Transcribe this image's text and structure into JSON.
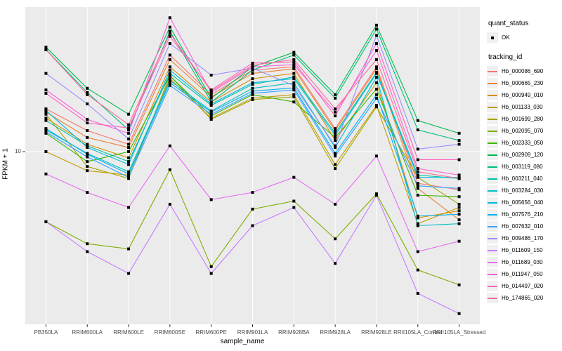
{
  "axes": {
    "x_title": "sample_name",
    "y_title": "FPKM + 1",
    "y_ticks": [
      {
        "label": "10",
        "value": 10
      }
    ]
  },
  "legend": {
    "quant_status_title": "quant_status",
    "quant_status_items": [
      {
        "label": "OK",
        "marker": "black-square-point"
      }
    ],
    "tracking_id_title": "tracking_id"
  },
  "style_colors": {
    "panel_background": "#EBEBEB",
    "gridline": "#FFFFFF",
    "tick_mark": "#333333",
    "tick_text": "#4D4D4D",
    "point": "#000000",
    "legend_key_background": "#F0F0F0"
  },
  "chart_data": {
    "type": "line",
    "title": "",
    "xlabel": "sample_name",
    "ylabel": "FPKM + 1",
    "yscale": "log10",
    "ylim": [
      1.4,
      52
    ],
    "grid": "major",
    "legend_position": "right",
    "point_shape": "filled-square",
    "x": [
      "PB350LA",
      "RRIM600LA",
      "RRIM600LE",
      "RRIM600SE",
      "RRIM600PE",
      "RRIM901LA",
      "RRIM928BA",
      "RRIM928LA",
      "RRIM928LE",
      "RRII105LA_Control",
      "RRII105LA_Stressed"
    ],
    "series": [
      {
        "name": "Hb_000086_690",
        "color": "#F8766D",
        "values": [
          16.5,
          12.8,
          10.9,
          31,
          19.5,
          26,
          27,
          13.1,
          27,
          6.9,
          6.4
        ]
      },
      {
        "name": "Hb_000665_230",
        "color": "#EA8331",
        "values": [
          15.9,
          11.8,
          10.5,
          29.4,
          19,
          25,
          26.4,
          12.8,
          26.4,
          6.5,
          4.5
        ]
      },
      {
        "name": "Hb_000949_010",
        "color": "#D89000",
        "values": [
          14.8,
          10.9,
          9.3,
          27,
          17.9,
          23.5,
          25,
          11.4,
          22.4,
          4.6,
          5.0
        ]
      },
      {
        "name": "Hb_001133_030",
        "color": "#C09B00",
        "values": [
          10,
          8.0,
          7.6,
          23.5,
          14.8,
          18.7,
          19.5,
          8.6,
          17.2,
          4.3,
          5.2
        ]
      },
      {
        "name": "Hb_001699_280",
        "color": "#A3A500",
        "values": [
          15.5,
          8.4,
          7.3,
          24.3,
          14.6,
          18.4,
          19,
          8.2,
          16.9,
          7.4,
          5.4
        ]
      },
      {
        "name": "Hb_002095_070",
        "color": "#7CAE00",
        "values": [
          4.4,
          3.4,
          3.2,
          8.1,
          2.6,
          5.1,
          5.6,
          3.6,
          6.1,
          2.5,
          2.1
        ]
      },
      {
        "name": "Hb_002333_050",
        "color": "#39B600",
        "values": [
          12.4,
          8.9,
          10,
          24.3,
          15.2,
          19.5,
          17.9,
          11.8,
          20.8,
          6.0,
          5.9
        ]
      },
      {
        "name": "Hb_002909_120",
        "color": "#00BB4E",
        "values": [
          34,
          21,
          15.5,
          43,
          18.7,
          27,
          32,
          19.5,
          44,
          14.4,
          12.4
        ]
      },
      {
        "name": "Hb_003119_080",
        "color": "#00BF7D",
        "values": [
          33,
          20,
          12.9,
          41,
          17.9,
          26,
          31,
          18.7,
          42,
          12.9,
          11.4
        ]
      },
      {
        "name": "Hb_003211_040",
        "color": "#00C1A3",
        "values": [
          14.4,
          10.7,
          8.9,
          25,
          17.2,
          22,
          24,
          12.4,
          25.3,
          7.6,
          7.3
        ]
      },
      {
        "name": "Hb_003284_030",
        "color": "#00BFC4",
        "values": [
          12.9,
          9.8,
          7.9,
          23,
          16.1,
          21,
          22.4,
          10.5,
          23.9,
          4.2,
          4.3
        ]
      },
      {
        "name": "Hb_005656_040",
        "color": "#00BAE0",
        "values": [
          16.2,
          10.5,
          8.6,
          26,
          17.5,
          22.4,
          23.5,
          12.1,
          25,
          7.4,
          7.4
        ]
      },
      {
        "name": "Hb_007576_210",
        "color": "#00B0F6",
        "values": [
          13.1,
          9.7,
          7.7,
          22.4,
          15.9,
          20.3,
          21.1,
          9.8,
          19.5,
          4.7,
          4.8
        ]
      },
      {
        "name": "Hb_007632_010",
        "color": "#35A2FF",
        "values": [
          12.6,
          9.4,
          7.4,
          21.7,
          15.5,
          19.8,
          20.6,
          9.5,
          18.7,
          6.7,
          6.5
        ]
      },
      {
        "name": "Hb_009486_170",
        "color": "#9590FF",
        "values": [
          25,
          17.5,
          11.6,
          35.5,
          24.5,
          26.6,
          21.7,
          10.7,
          39,
          10.3,
          10.9
        ]
      },
      {
        "name": "Hb_011609_150",
        "color": "#C77CFF",
        "values": [
          4.4,
          3.1,
          2.4,
          5.4,
          2.4,
          4.2,
          5.2,
          2.7,
          6.0,
          1.9,
          1.5
        ]
      },
      {
        "name": "Hb_011689_030",
        "color": "#E76BF3",
        "values": [
          7.7,
          6.2,
          5.2,
          10.7,
          5.7,
          6.2,
          7.4,
          5.4,
          9.5,
          3.1,
          3.5
        ]
      },
      {
        "name": "Hb_011947_050",
        "color": "#FA62DB",
        "values": [
          20.6,
          14.6,
          12.4,
          48,
          20,
          27,
          27.7,
          15.9,
          32.7,
          8.2,
          7.6
        ]
      },
      {
        "name": "Hb_014497_020",
        "color": "#FF62BC",
        "values": [
          19.8,
          14,
          13.2,
          38.6,
          20.6,
          28.2,
          28.6,
          15.2,
          35.5,
          9.1,
          9.1
        ]
      },
      {
        "name": "Hb_174865_020",
        "color": "#FF6A98",
        "values": [
          33,
          19.5,
          13.7,
          40,
          20.3,
          27.5,
          29.4,
          16.5,
          29.4,
          7.9,
          7.3
        ]
      }
    ]
  }
}
